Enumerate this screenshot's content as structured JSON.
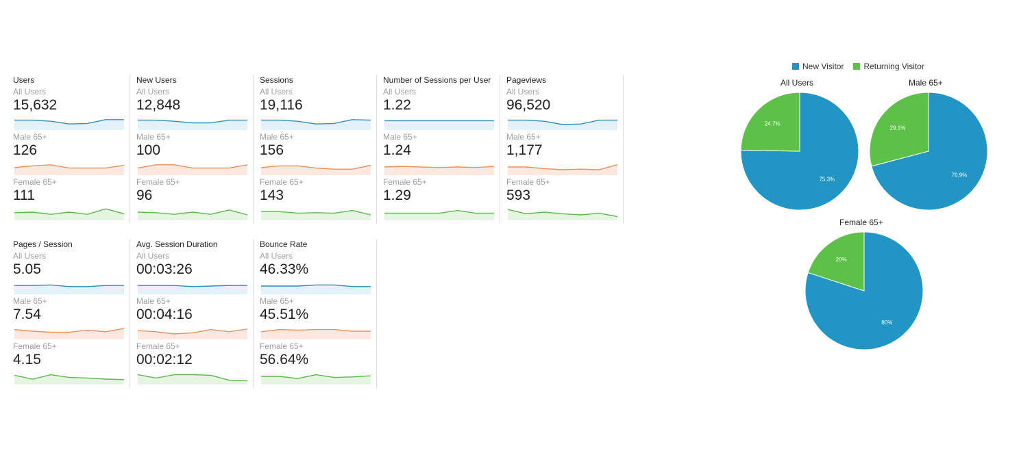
{
  "colors": {
    "blue": "#2a8fbd",
    "orange": "#e8915b",
    "green": "#5bb84a",
    "pie_new": "#2196c4",
    "pie_returning": "#5dc148"
  },
  "metrics": [
    {
      "title": "Users",
      "segments": [
        {
          "label": "All Users",
          "value": "15,632"
        },
        {
          "label": "Male 65+",
          "value": "126"
        },
        {
          "label": "Female 65+",
          "value": "111"
        }
      ]
    },
    {
      "title": "New Users",
      "segments": [
        {
          "label": "All Users",
          "value": "12,848"
        },
        {
          "label": "Male 65+",
          "value": "100"
        },
        {
          "label": "Female 65+",
          "value": "96"
        }
      ]
    },
    {
      "title": "Sessions",
      "segments": [
        {
          "label": "All Users",
          "value": "19,116"
        },
        {
          "label": "Male 65+",
          "value": "156"
        },
        {
          "label": "Female 65+",
          "value": "143"
        }
      ]
    },
    {
      "title": "Number of Sessions per User",
      "segments": [
        {
          "label": "All Users",
          "value": "1.22"
        },
        {
          "label": "Male 65+",
          "value": "1.24"
        },
        {
          "label": "Female 65+",
          "value": "1.29"
        }
      ]
    },
    {
      "title": "Pageviews",
      "segments": [
        {
          "label": "All Users",
          "value": "96,520"
        },
        {
          "label": "Male 65+",
          "value": "1,177"
        },
        {
          "label": "Female 65+",
          "value": "593"
        }
      ]
    },
    {
      "title": "Pages / Session",
      "segments": [
        {
          "label": "All Users",
          "value": "5.05"
        },
        {
          "label": "Male 65+",
          "value": "7.54"
        },
        {
          "label": "Female 65+",
          "value": "4.15"
        }
      ]
    },
    {
      "title": "Avg. Session Duration",
      "segments": [
        {
          "label": "All Users",
          "value": "00:03:26"
        },
        {
          "label": "Male 65+",
          "value": "00:04:16"
        },
        {
          "label": "Female 65+",
          "value": "00:02:12"
        }
      ]
    },
    {
      "title": "Bounce Rate",
      "segments": [
        {
          "label": "All Users",
          "value": "46.33%"
        },
        {
          "label": "Male 65+",
          "value": "45.51%"
        },
        {
          "label": "Female 65+",
          "value": "56.64%"
        }
      ]
    }
  ],
  "chart_data": {
    "type": "pie",
    "legend": {
      "entries": [
        "New Visitor",
        "Returning Visitor"
      ],
      "placement": "top"
    },
    "pies": [
      {
        "title": "All Users",
        "slices": [
          {
            "name": "New Visitor",
            "value": 75.3,
            "label": "75.3%"
          },
          {
            "name": "Returning Visitor",
            "value": 24.7,
            "label": "24.7%"
          }
        ]
      },
      {
        "title": "Male 65+",
        "slices": [
          {
            "name": "New Visitor",
            "value": 70.9,
            "label": "70.9%"
          },
          {
            "name": "Returning Visitor",
            "value": 29.1,
            "label": "29.1%"
          }
        ]
      },
      {
        "title": "Female 65+",
        "slices": [
          {
            "name": "New Visitor",
            "value": 80,
            "label": "80%"
          },
          {
            "name": "Returning Visitor",
            "value": 20,
            "label": "20%"
          }
        ]
      }
    ]
  }
}
